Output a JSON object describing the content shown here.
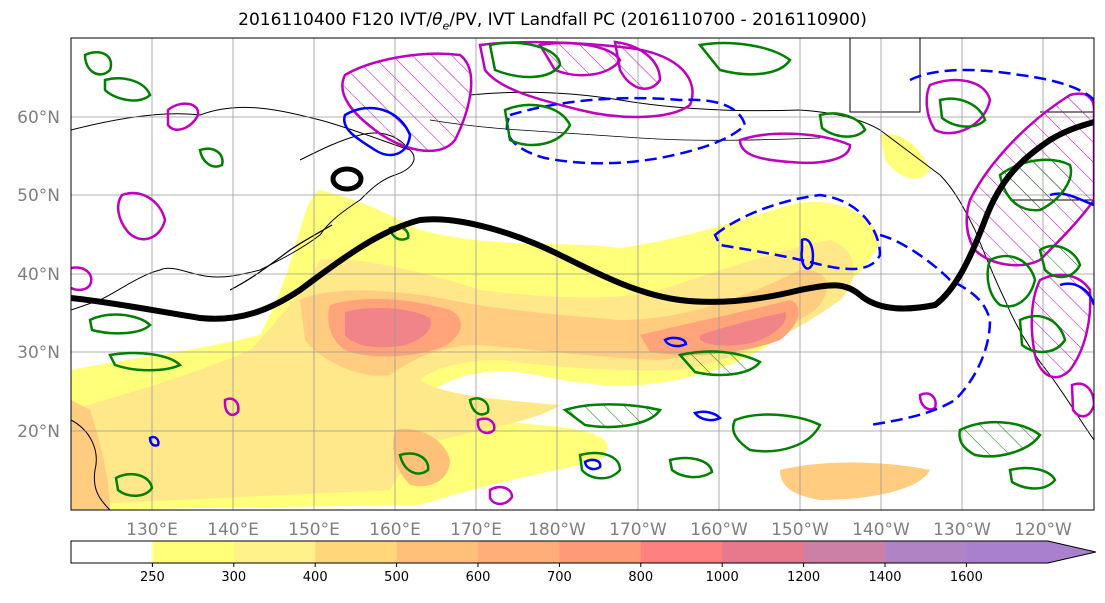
{
  "title": {
    "pre": "2016110400 F120 IVT/",
    "theta": "θ",
    "theta_sub": "e",
    "post": "/PV, IVT Landfall PC (2016110700 - 2016110900)"
  },
  "axes": {
    "lat_labels": [
      "60°N",
      "50°N",
      "40°N",
      "30°N",
      "20°N"
    ],
    "lat_values": [
      60,
      50,
      40,
      30,
      20
    ],
    "lon_labels": [
      "130°E",
      "140°E",
      "150°E",
      "160°E",
      "170°E",
      "180°W",
      "170°W",
      "160°W",
      "150°W",
      "140°W",
      "130°W",
      "120°W"
    ],
    "lat_range": [
      10,
      70
    ],
    "lon_range_east": [
      120,
      246
    ]
  },
  "colorbar": {
    "tick_labels": [
      "250",
      "300",
      "400",
      "500",
      "600",
      "700",
      "800",
      "1000",
      "1200",
      "1400",
      "1600"
    ],
    "colors": [
      "#ffffff",
      "#ffff7a",
      "#fff28a",
      "#ffd67a",
      "#ffc07a",
      "#ffae7a",
      "#ff9a78",
      "#ff8080",
      "#e8788c",
      "#cc80a6",
      "#b084c4",
      "#a880cc"
    ],
    "extend": "max"
  },
  "colors": {
    "jet_line": "#000000",
    "pv_contour": "#0000ff",
    "theta_contour": "#008000",
    "ivt_contour": "#c000c0",
    "grid": "#999999",
    "coast": "#000000"
  }
}
